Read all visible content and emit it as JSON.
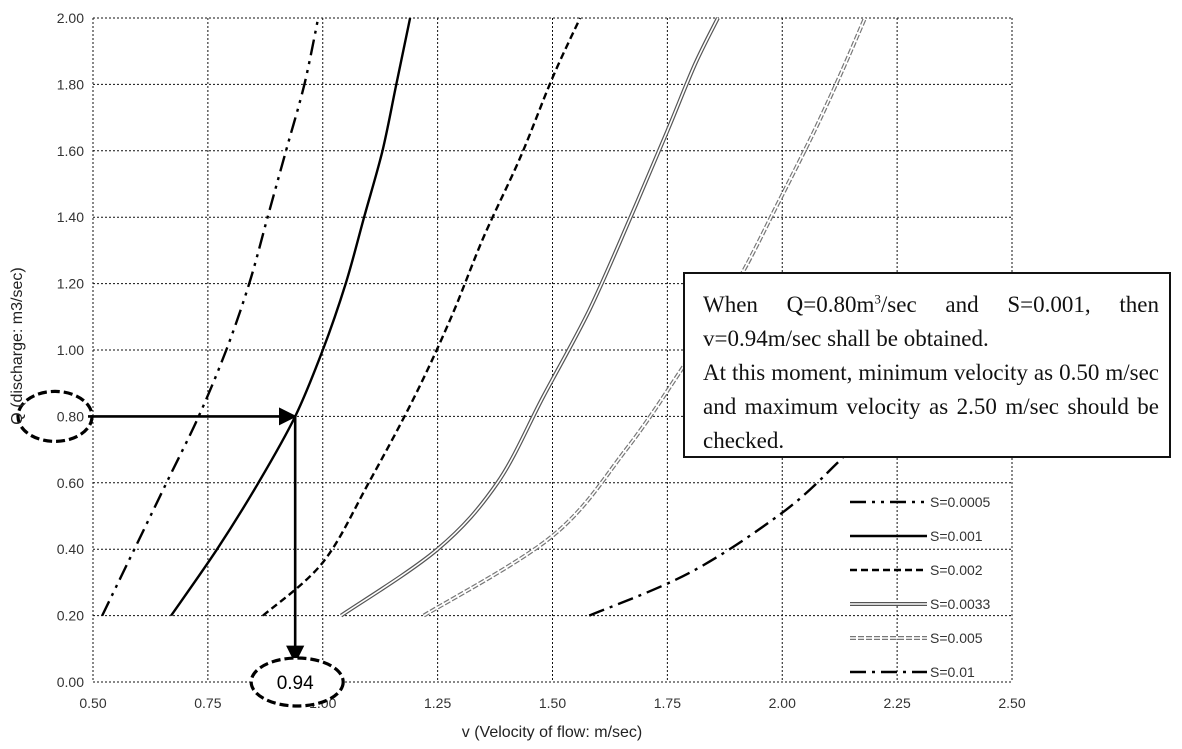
{
  "chart_data": {
    "type": "line",
    "xlabel": "v (Velocity of flow: m/sec)",
    "ylabel": "Q (discharge: m3/sec)",
    "xlim": [
      0.5,
      2.5
    ],
    "ylim": [
      0.0,
      2.0
    ],
    "x_ticks": [
      "0.50",
      "0.75",
      "1.00",
      "1.25",
      "1.50",
      "1.75",
      "2.00",
      "2.25",
      "2.50"
    ],
    "y_ticks": [
      "0.00",
      "0.20",
      "0.40",
      "0.60",
      "0.80",
      "1.00",
      "1.20",
      "1.40",
      "1.60",
      "1.80",
      "2.00"
    ],
    "grid": true,
    "legend_position": "bottom-right",
    "series": [
      {
        "name": "S=0.0005",
        "style": "dash-dot-dot",
        "points": [
          [
            0.52,
            0.2
          ],
          [
            0.59,
            0.4
          ],
          [
            0.66,
            0.6
          ],
          [
            0.73,
            0.8
          ],
          [
            0.79,
            1.0
          ],
          [
            0.84,
            1.2
          ],
          [
            0.88,
            1.4
          ],
          [
            0.92,
            1.6
          ],
          [
            0.96,
            1.8
          ],
          [
            0.99,
            2.0
          ]
        ]
      },
      {
        "name": "S=0.001",
        "style": "solid",
        "points": [
          [
            0.67,
            0.2
          ],
          [
            0.77,
            0.4
          ],
          [
            0.86,
            0.6
          ],
          [
            0.94,
            0.8
          ],
          [
            1.0,
            1.0
          ],
          [
            1.05,
            1.2
          ],
          [
            1.09,
            1.4
          ],
          [
            1.13,
            1.6
          ],
          [
            1.16,
            1.8
          ],
          [
            1.19,
            2.0
          ]
        ]
      },
      {
        "name": "S=0.002",
        "style": "dashed",
        "points": [
          [
            0.87,
            0.2
          ],
          [
            1.0,
            0.36
          ],
          [
            1.1,
            0.6
          ],
          [
            1.2,
            0.86
          ],
          [
            1.28,
            1.1
          ],
          [
            1.35,
            1.34
          ],
          [
            1.43,
            1.58
          ],
          [
            1.5,
            1.82
          ],
          [
            1.56,
            2.0
          ]
        ]
      },
      {
        "name": "S=0.0033",
        "style": "double",
        "points": [
          [
            1.04,
            0.2
          ],
          [
            1.25,
            0.4
          ],
          [
            1.38,
            0.6
          ],
          [
            1.48,
            0.86
          ],
          [
            1.58,
            1.12
          ],
          [
            1.67,
            1.4
          ],
          [
            1.75,
            1.66
          ],
          [
            1.81,
            1.86
          ],
          [
            1.86,
            2.0
          ]
        ]
      },
      {
        "name": "S=0.005",
        "style": "double-dashed",
        "points": [
          [
            1.22,
            0.2
          ],
          [
            1.5,
            0.44
          ],
          [
            1.66,
            0.7
          ],
          [
            1.78,
            0.94
          ],
          [
            1.9,
            1.2
          ],
          [
            1.99,
            1.44
          ],
          [
            2.07,
            1.66
          ],
          [
            2.13,
            1.84
          ],
          [
            2.18,
            2.0
          ]
        ]
      },
      {
        "name": "S=0.01",
        "style": "dash-dot",
        "points": [
          [
            1.58,
            0.2
          ],
          [
            1.8,
            0.33
          ],
          [
            2.0,
            0.51
          ],
          [
            2.12,
            0.66
          ],
          [
            2.2,
            0.78
          ]
        ]
      }
    ],
    "annotation": {
      "q": 0.8,
      "v": 0.94,
      "v_label": "0.94",
      "q_label": "0.80",
      "text": {
        "line1_pre": "When  Q=0.80m",
        "line1_sup": "3",
        "line1_post": "/sec  and  S=0.001, then v=0.94m/sec shall be obtained.",
        "line2": "At this moment, minimum velocity as 0.50 m/sec and maximum velocity as 2.50 m/sec should be checked."
      }
    }
  },
  "colors": {
    "lines": "#000000",
    "grid": "#111111",
    "double_outer": "#555555",
    "double_dashed_outer": "#777777"
  }
}
